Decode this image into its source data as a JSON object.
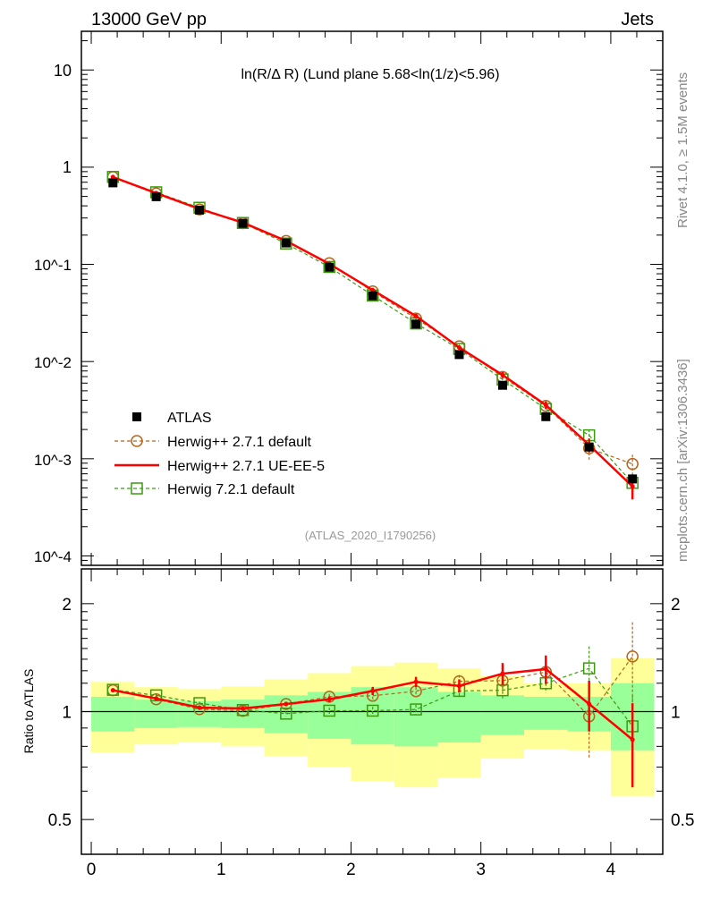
{
  "header": {
    "left_label": "13000 GeV pp",
    "right_label": "Jets",
    "title": "ln(R/Δ R) (Lund plane 5.68<ln(1/z)<5.96)",
    "side_label_top": "Rivet 4.1.0, ≥ 1.5M events",
    "side_label_bottom": "mcplots.cern.ch [arXiv:1306.3436]",
    "analysis_id": "(ATLAS_2020_I1790256)"
  },
  "chart_data": [
    {
      "type": "scatter",
      "panel": "main",
      "yscale": "log",
      "xlim": [
        -0.076,
        4.4
      ],
      "ylim": [
        8e-05,
        25
      ],
      "ytick_values": [
        10,
        1,
        0.1,
        0.01,
        0.001,
        0.0001
      ],
      "ytick_labels": [
        "10",
        "1",
        "10^-1",
        "10^-2",
        "10^-3",
        "10^-4"
      ],
      "x": [
        0.167,
        0.5,
        0.833,
        1.167,
        1.5,
        1.833,
        2.167,
        2.5,
        2.833,
        3.167,
        3.5,
        3.833,
        4.167
      ],
      "bin_edges": [
        0,
        0.333,
        0.667,
        1.0,
        1.333,
        1.667,
        2.0,
        2.333,
        2.667,
        3.0,
        3.333,
        3.667,
        4.0,
        4.333
      ],
      "data": {
        "name": "ATLAS",
        "values": [
          0.69,
          0.497,
          0.362,
          0.264,
          0.166,
          0.0935,
          0.0476,
          0.0243,
          0.0118,
          0.0057,
          0.00271,
          0.00132,
          0.00062
        ]
      },
      "legend": [
        "ATLAS",
        "Herwig++ 2.7.1 default",
        "Herwig++ 2.7.1 UE-EE-5",
        "Herwig 7.2.1 default"
      ],
      "legend_placement": "bottom-left"
    },
    {
      "type": "line",
      "panel": "ratio",
      "ylabel": "Ratio to ATLAS",
      "yscale": "log",
      "ylim": [
        0.4,
        2.5
      ],
      "ytick_values": [
        0.5,
        1,
        2
      ],
      "ytick_labels": [
        "0.5",
        "1",
        "2"
      ],
      "xtick_values": [
        0,
        1,
        2,
        3,
        4
      ],
      "xtick_labels": [
        "0",
        "1",
        "2",
        "3",
        "4"
      ],
      "band_yellow": {
        "up": [
          1.21,
          1.17,
          1.155,
          1.175,
          1.23,
          1.28,
          1.34,
          1.37,
          1.32,
          1.26,
          1.2,
          1.2,
          1.41
        ],
        "down": [
          0.77,
          0.81,
          0.82,
          0.8,
          0.75,
          0.7,
          0.64,
          0.615,
          0.655,
          0.74,
          0.785,
          0.78,
          0.58
        ]
      },
      "band_green": {
        "up": [
          1.1,
          1.08,
          1.07,
          1.08,
          1.11,
          1.135,
          1.17,
          1.17,
          1.135,
          1.11,
          1.1,
          1.1,
          1.2
        ],
        "down": [
          0.88,
          0.9,
          0.905,
          0.9,
          0.87,
          0.84,
          0.81,
          0.8,
          0.82,
          0.86,
          0.89,
          0.88,
          0.78
        ]
      },
      "series": [
        {
          "name": "Herwig++ 2.7.1 default",
          "color": "#b5651d",
          "marker": "circle",
          "style": "dashed",
          "values": [
            1.147,
            1.082,
            1.016,
            1.005,
            1.05,
            1.1,
            1.107,
            1.14,
            1.215,
            1.22,
            1.29,
            0.97,
            1.425
          ],
          "errors": [
            0.01,
            0.01,
            0.01,
            0.01,
            0.015,
            0.02,
            0.025,
            0.03,
            0.05,
            0.06,
            0.08,
            0.23,
            0.35
          ]
        },
        {
          "name": "Herwig++ 2.7.1 UE-EE-5",
          "color": "#ff0000",
          "marker": "none",
          "style": "solid",
          "values": [
            1.147,
            1.088,
            1.026,
            1.02,
            1.05,
            1.082,
            1.142,
            1.21,
            1.18,
            1.276,
            1.314,
            1.05,
            0.835
          ],
          "errors": [
            0.01,
            0.01,
            0.01,
            0.01,
            0.015,
            0.02,
            0.03,
            0.04,
            0.05,
            0.09,
            0.12,
            0.17,
            0.22
          ]
        },
        {
          "name": "Herwig 7.2.1 default",
          "color": "#3c9a10",
          "marker": "square",
          "style": "dashed",
          "values": [
            1.15,
            1.11,
            1.056,
            1.01,
            0.987,
            1.006,
            1.006,
            1.014,
            1.142,
            1.147,
            1.2,
            1.32,
            0.91
          ],
          "errors": [
            0.01,
            0.01,
            0.01,
            0.01,
            0.015,
            0.02,
            0.025,
            0.03,
            0.05,
            0.06,
            0.07,
            0.2,
            0.2
          ]
        }
      ]
    }
  ]
}
